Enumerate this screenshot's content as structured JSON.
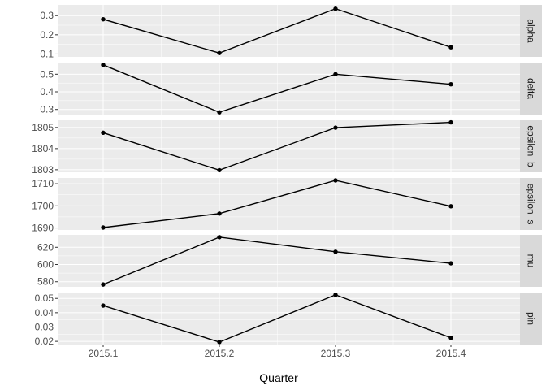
{
  "chart_data": {
    "type": "line",
    "xlabel": "Quarter",
    "ylabel": "",
    "x": [
      "2015.1",
      "2015.2",
      "2015.3",
      "2015.4"
    ],
    "grid": true,
    "colors": {
      "panel_bg": "#ebebeb",
      "strip_bg": "#d9d9d9",
      "grid": "#ffffff",
      "line": "#000000",
      "text": "#4d4d4d",
      "title": "#000000"
    },
    "facets": [
      {
        "label": "alpha",
        "values": [
          0.281,
          0.105,
          0.336,
          0.135
        ],
        "ylim": [
          0.085,
          0.356
        ],
        "ticks": [
          0.1,
          0.2,
          0.3
        ],
        "tick_labels": [
          "0.1",
          "0.2",
          "0.3"
        ]
      },
      {
        "label": "delta",
        "values": [
          0.553,
          0.284,
          0.5,
          0.443
        ],
        "ylim": [
          0.271,
          0.566
        ],
        "ticks": [
          0.3,
          0.4,
          0.5
        ],
        "tick_labels": [
          "0.3",
          "0.4",
          "0.5"
        ]
      },
      {
        "label": "epsilon_b",
        "values": [
          1804.75,
          1802.98,
          1804.99,
          1805.24
        ],
        "ylim": [
          1802.88,
          1805.34
        ],
        "ticks": [
          1803,
          1804,
          1805
        ],
        "tick_labels": [
          "1803",
          "1804",
          "1805"
        ]
      },
      {
        "label": "epsilon_s",
        "values": [
          1690.2,
          1696.5,
          1711.5,
          1699.8
        ],
        "ylim": [
          1689.1,
          1712.6
        ],
        "ticks": [
          1690,
          1700,
          1710
        ],
        "tick_labels": [
          "1690",
          "1700",
          "1710"
        ]
      },
      {
        "label": "mu",
        "values": [
          576.8,
          631.7,
          614.8,
          601.4
        ],
        "ylim": [
          574.1,
          634.4
        ],
        "ticks": [
          580,
          600,
          620
        ],
        "tick_labels": [
          "580",
          "600",
          "620"
        ]
      },
      {
        "label": "pin",
        "values": [
          0.045,
          0.0195,
          0.0525,
          0.0225
        ],
        "ylim": [
          0.0178,
          0.0541
        ],
        "ticks": [
          0.02,
          0.03,
          0.04,
          0.05
        ],
        "tick_labels": [
          "0.02",
          "0.03",
          "0.04",
          "0.05"
        ]
      }
    ]
  }
}
